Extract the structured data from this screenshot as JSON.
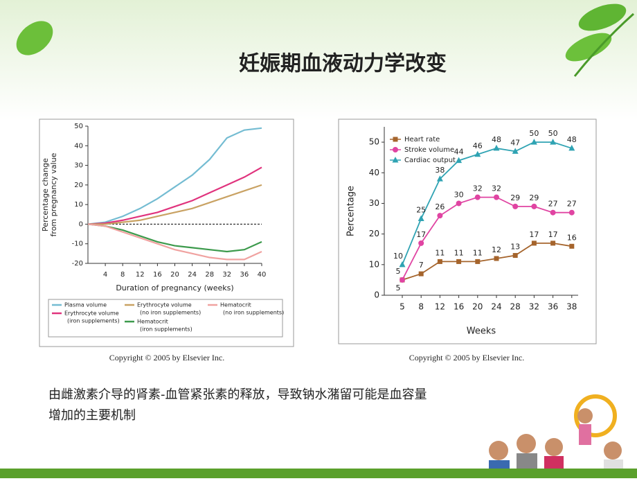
{
  "title": "妊娠期血液动力学改变",
  "chart_data": [
    {
      "type": "line",
      "xlabel": "Duration of pregnancy (weeks)",
      "ylabel": [
        "Percentage change",
        "from pregnancy value"
      ],
      "x": [
        0,
        4,
        8,
        12,
        16,
        20,
        24,
        28,
        32,
        36,
        40
      ],
      "xlim": [
        0,
        40
      ],
      "xticks": [
        4,
        8,
        12,
        16,
        20,
        24,
        28,
        32,
        36,
        40
      ],
      "ylim": [
        -20,
        50
      ],
      "yticks": [
        -20,
        -10,
        0,
        10,
        20,
        30,
        40,
        50
      ],
      "zero_line": true,
      "series": [
        {
          "name": "Plasma volume",
          "color": "#74bcd2",
          "values": [
            0,
            1,
            4,
            8,
            13,
            19,
            25,
            33,
            44,
            48,
            49
          ]
        },
        {
          "name": "Erythrocyte volume",
          "note": "(iron supplements)",
          "color": "#e0337d",
          "values": [
            0,
            0.5,
            2,
            4,
            6,
            9,
            12,
            16,
            20,
            24,
            29
          ]
        },
        {
          "name": "Erythrocyte volume",
          "note": "(no iron supplements)",
          "color": "#c9a263",
          "values": [
            0,
            0,
            1,
            2,
            4,
            6,
            8,
            11,
            14,
            17,
            20
          ]
        },
        {
          "name": "Hematocrit",
          "note": "(iron supplements)",
          "color": "#3c9a4c",
          "values": [
            0,
            -1,
            -3,
            -6,
            -9,
            -11,
            -12,
            -13,
            -14,
            -13,
            -9
          ]
        },
        {
          "name": "Hematocrit",
          "note": "(no iron supplements)",
          "color": "#f0a2a0",
          "values": [
            0,
            -1,
            -4,
            -7,
            -10,
            -13,
            -15,
            -17,
            -18,
            -18,
            -14
          ]
        }
      ],
      "source": "Copyright © 2005 by Elsevier Inc."
    },
    {
      "type": "line",
      "xlabel": "Weeks",
      "ylabel": [
        "Percentage"
      ],
      "categories": [
        "5",
        "8",
        "12",
        "16",
        "20",
        "24",
        "28",
        "32",
        "36",
        "38"
      ],
      "ylim": [
        0,
        55
      ],
      "yticks": [
        0,
        10,
        20,
        30,
        40,
        50
      ],
      "data_labels": true,
      "series": [
        {
          "name": "Heart rate",
          "color": "#a5642c",
          "marker": "square",
          "values": [
            5,
            7,
            11,
            11,
            11,
            12,
            13,
            17,
            17,
            16
          ]
        },
        {
          "name": "Stroke volume",
          "color": "#e044a2",
          "marker": "circle",
          "values": [
            5,
            17,
            26,
            30,
            32,
            32,
            29,
            29,
            27,
            27
          ]
        },
        {
          "name": "Cardiac output",
          "color": "#2fa3b3",
          "marker": "triangle",
          "values": [
            10,
            25,
            38,
            44,
            46,
            48,
            47,
            50,
            50,
            48
          ]
        }
      ],
      "source": "Copyright © 2005 by Elsevier Inc."
    }
  ],
  "caption": [
    "由雌激素介导的肾素-血管紧张素的释放，导致钠水潴留可能是血容量",
    "增加的主要机制"
  ]
}
